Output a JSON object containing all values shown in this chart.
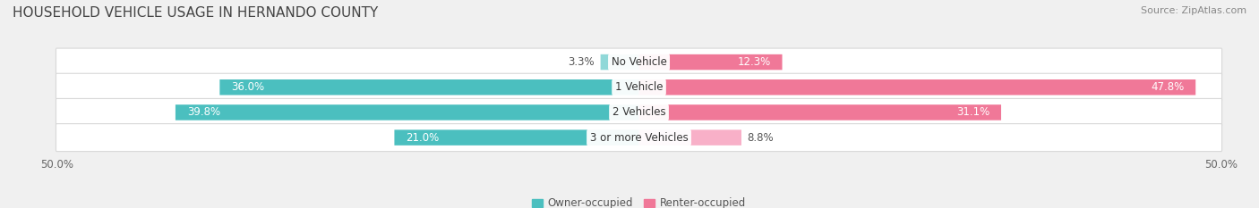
{
  "title": "HOUSEHOLD VEHICLE USAGE IN HERNANDO COUNTY",
  "source": "Source: ZipAtlas.com",
  "categories": [
    "No Vehicle",
    "1 Vehicle",
    "2 Vehicles",
    "3 or more Vehicles"
  ],
  "owner_values": [
    3.3,
    36.0,
    39.8,
    21.0
  ],
  "renter_values": [
    12.3,
    47.8,
    31.1,
    8.8
  ],
  "owner_color": "#4bbfbf",
  "renter_color": "#f07898",
  "owner_color_light": "#90d8d8",
  "renter_color_light": "#f8b0c8",
  "bar_height": 0.62,
  "xlim": [
    -50,
    50
  ],
  "background_color": "#f0f0f0",
  "row_bg_color": "#ffffff",
  "legend_owner": "Owner-occupied",
  "legend_renter": "Renter-occupied",
  "title_fontsize": 11,
  "source_fontsize": 8,
  "label_fontsize": 8.5,
  "category_fontsize": 8.5,
  "tick_fontsize": 8.5,
  "white_label_threshold": 10
}
